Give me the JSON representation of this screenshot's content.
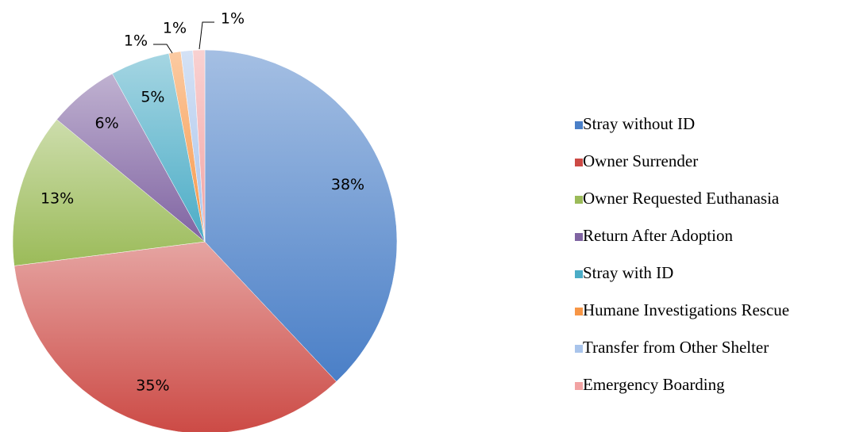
{
  "chart_data": {
    "type": "pie",
    "categories": [
      "Stray without ID",
      "Owner Surrender",
      "Owner Requested Euthanasia",
      "Return After Adoption",
      "Stray with ID",
      "Humane Investigations Rescue",
      "Transfer from Other Shelter",
      "Emergency Boarding"
    ],
    "values": [
      38,
      35,
      13,
      6,
      5,
      1,
      1,
      1
    ],
    "value_labels": [
      "38%",
      "35%",
      "13%",
      "6%",
      "5%",
      "1%",
      "1%",
      "1%"
    ],
    "colors": [
      "#4a7fc7",
      "#cc4a45",
      "#9bbb59",
      "#8064a2",
      "#4bacc6",
      "#f79646",
      "#a9c4eb",
      "#f2a3a3"
    ],
    "legend": "right"
  }
}
